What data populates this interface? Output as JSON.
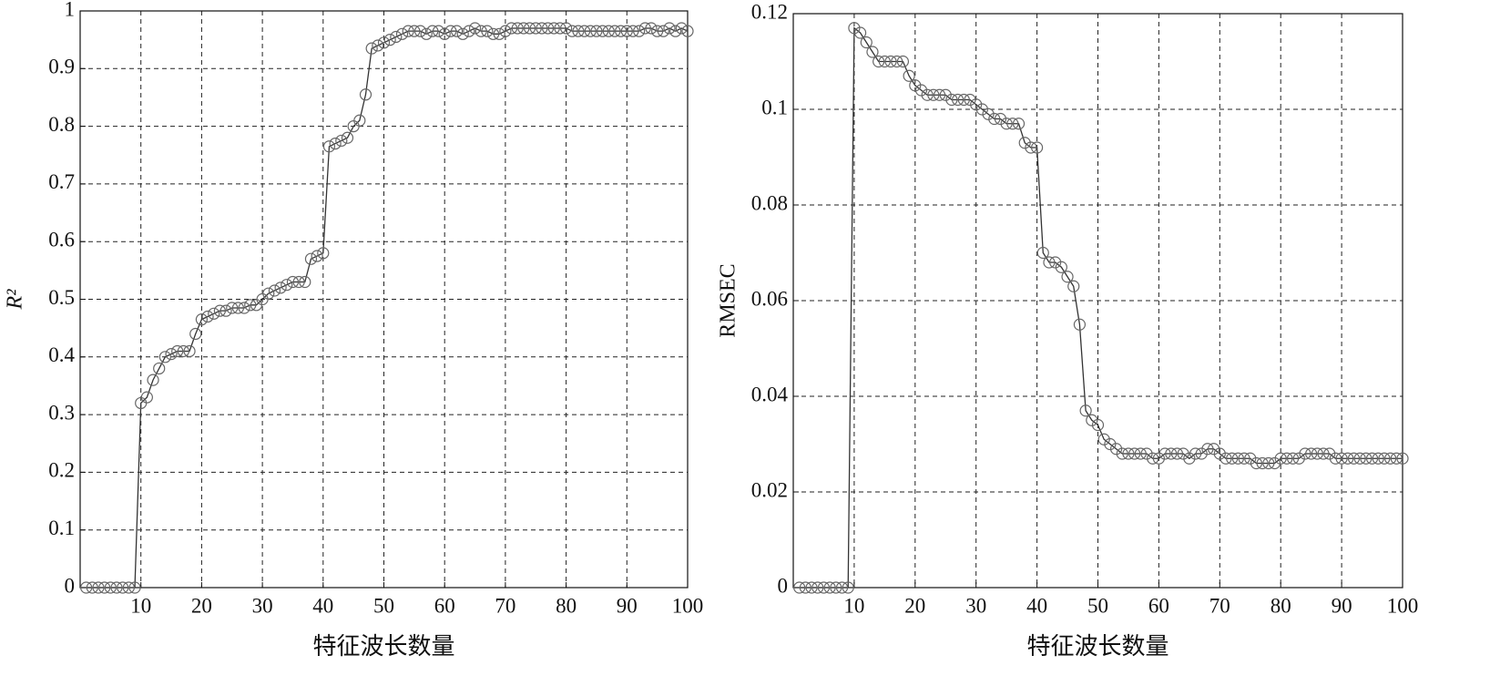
{
  "chart_data": [
    {
      "type": "line",
      "xlabel": "特征波长数量",
      "ylabel": "R²",
      "grid": true,
      "color": "#333333",
      "marker_color": "#666666",
      "xlim": [
        0,
        100
      ],
      "xticks": [
        10,
        20,
        30,
        40,
        50,
        60,
        70,
        80,
        90,
        100
      ],
      "ylim": [
        0,
        1
      ],
      "yticks": [
        0,
        0.1,
        0.2,
        0.3,
        0.4,
        0.5,
        0.6,
        0.7,
        0.8,
        0.9,
        1
      ],
      "x": [
        1,
        2,
        3,
        4,
        5,
        6,
        7,
        8,
        9,
        10,
        11,
        12,
        13,
        14,
        15,
        16,
        17,
        18,
        19,
        20,
        21,
        22,
        23,
        24,
        25,
        26,
        27,
        28,
        29,
        30,
        31,
        32,
        33,
        34,
        35,
        36,
        37,
        38,
        39,
        40,
        41,
        42,
        43,
        44,
        45,
        46,
        47,
        48,
        49,
        50,
        51,
        52,
        53,
        54,
        55,
        56,
        57,
        58,
        59,
        60,
        61,
        62,
        63,
        64,
        65,
        66,
        67,
        68,
        69,
        70,
        71,
        72,
        73,
        74,
        75,
        76,
        77,
        78,
        79,
        80,
        81,
        82,
        83,
        84,
        85,
        86,
        87,
        88,
        89,
        90,
        91,
        92,
        93,
        94,
        95,
        96,
        97,
        98,
        99,
        100
      ],
      "values": [
        0,
        0,
        0,
        0,
        0,
        0,
        0,
        0,
        0,
        0.32,
        0.33,
        0.36,
        0.38,
        0.4,
        0.405,
        0.41,
        0.41,
        0.41,
        0.44,
        0.465,
        0.47,
        0.475,
        0.48,
        0.48,
        0.485,
        0.485,
        0.485,
        0.49,
        0.49,
        0.5,
        0.51,
        0.515,
        0.52,
        0.525,
        0.53,
        0.53,
        0.53,
        0.57,
        0.575,
        0.58,
        0.765,
        0.77,
        0.775,
        0.78,
        0.8,
        0.81,
        0.855,
        0.935,
        0.94,
        0.945,
        0.95,
        0.955,
        0.96,
        0.965,
        0.965,
        0.965,
        0.96,
        0.965,
        0.965,
        0.96,
        0.965,
        0.965,
        0.96,
        0.965,
        0.97,
        0.965,
        0.965,
        0.96,
        0.96,
        0.965,
        0.97,
        0.97,
        0.97,
        0.97,
        0.97,
        0.97,
        0.97,
        0.97,
        0.97,
        0.97,
        0.965,
        0.965,
        0.965,
        0.965,
        0.965,
        0.965,
        0.965,
        0.965,
        0.965,
        0.965,
        0.965,
        0.965,
        0.97,
        0.97,
        0.965,
        0.965,
        0.97,
        0.965,
        0.97,
        0.965
      ]
    },
    {
      "type": "line",
      "xlabel": "特征波长数量",
      "ylabel": "RMSEC",
      "grid": true,
      "color": "#333333",
      "marker_color": "#666666",
      "xlim": [
        0,
        100
      ],
      "xticks": [
        10,
        20,
        30,
        40,
        50,
        60,
        70,
        80,
        90,
        100
      ],
      "ylim": [
        0,
        0.12
      ],
      "yticks": [
        0,
        0.02,
        0.04,
        0.06,
        0.08,
        0.1,
        0.12
      ],
      "x": [
        1,
        2,
        3,
        4,
        5,
        6,
        7,
        8,
        9,
        10,
        11,
        12,
        13,
        14,
        15,
        16,
        17,
        18,
        19,
        20,
        21,
        22,
        23,
        24,
        25,
        26,
        27,
        28,
        29,
        30,
        31,
        32,
        33,
        34,
        35,
        36,
        37,
        38,
        39,
        40,
        41,
        42,
        43,
        44,
        45,
        46,
        47,
        48,
        49,
        50,
        51,
        52,
        53,
        54,
        55,
        56,
        57,
        58,
        59,
        60,
        61,
        62,
        63,
        64,
        65,
        66,
        67,
        68,
        69,
        70,
        71,
        72,
        73,
        74,
        75,
        76,
        77,
        78,
        79,
        80,
        81,
        82,
        83,
        84,
        85,
        86,
        87,
        88,
        89,
        90,
        91,
        92,
        93,
        94,
        95,
        96,
        97,
        98,
        99,
        100
      ],
      "values": [
        0,
        0,
        0,
        0,
        0,
        0,
        0,
        0,
        0,
        0.117,
        0.116,
        0.114,
        0.112,
        0.11,
        0.11,
        0.11,
        0.11,
        0.11,
        0.107,
        0.105,
        0.104,
        0.103,
        0.103,
        0.103,
        0.103,
        0.102,
        0.102,
        0.102,
        0.102,
        0.101,
        0.1,
        0.099,
        0.098,
        0.098,
        0.097,
        0.097,
        0.097,
        0.093,
        0.092,
        0.092,
        0.07,
        0.068,
        0.068,
        0.067,
        0.065,
        0.063,
        0.055,
        0.037,
        0.035,
        0.034,
        0.031,
        0.03,
        0.029,
        0.028,
        0.028,
        0.028,
        0.028,
        0.028,
        0.027,
        0.027,
        0.028,
        0.028,
        0.028,
        0.028,
        0.027,
        0.028,
        0.028,
        0.029,
        0.029,
        0.028,
        0.027,
        0.027,
        0.027,
        0.027,
        0.027,
        0.026,
        0.026,
        0.026,
        0.026,
        0.027,
        0.027,
        0.027,
        0.027,
        0.028,
        0.028,
        0.028,
        0.028,
        0.028,
        0.027,
        0.027,
        0.027,
        0.027,
        0.027,
        0.027,
        0.027,
        0.027,
        0.027,
        0.027,
        0.027,
        0.027
      ]
    }
  ]
}
